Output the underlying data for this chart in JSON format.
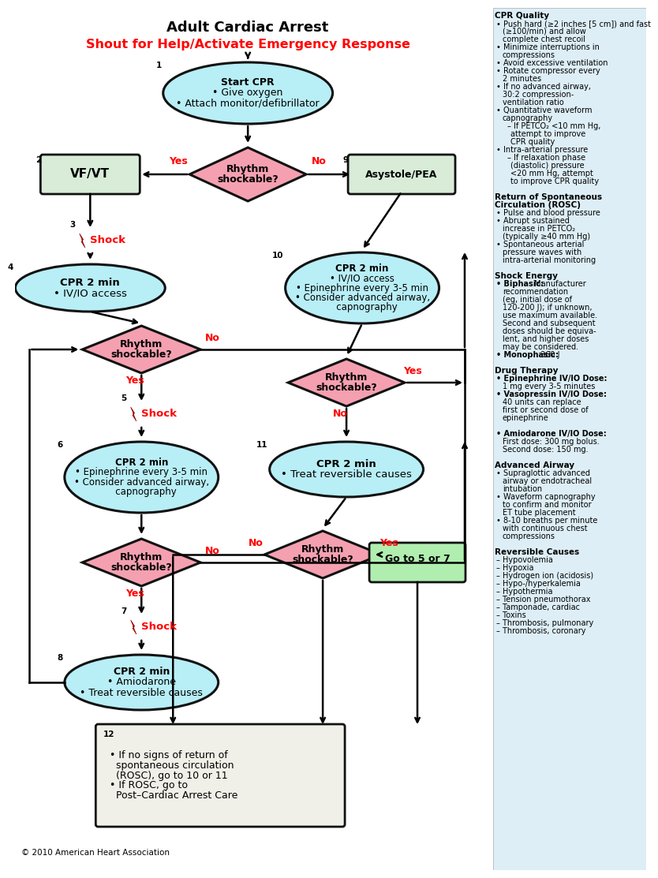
{
  "title": "Adult Cardiac Arrest",
  "subtitle": "Shout for Help/Activate Emergency Response",
  "bg": "#ffffff",
  "sidebar_bg": "#ddeef6",
  "ellipse_color": "#b8eef6",
  "diamond_color": "#f4a0b0",
  "rect_green": "#d8ecd8",
  "goto_color": "#b0eeb0",
  "box12_color": "#f0f0e8",
  "copyright": "© 2010 American Heart Association",
  "sidebar_lines": [
    {
      "t": "CPR Quality",
      "b": true,
      "i": 0
    },
    {
      "t": "• Push hard (≥2 inches [5 cm]) and fast",
      "b": false,
      "i": 1
    },
    {
      "t": "(≥100/min) and allow",
      "b": false,
      "i": 2
    },
    {
      "t": "complete chest recoil",
      "b": false,
      "i": 2
    },
    {
      "t": "• Minimize interruptions in",
      "b": false,
      "i": 1
    },
    {
      "t": "compressions",
      "b": false,
      "i": 2
    },
    {
      "t": "• Avoid excessive ventilation",
      "b": false,
      "i": 1
    },
    {
      "t": "• Rotate compressor every",
      "b": false,
      "i": 1
    },
    {
      "t": "2 minutes",
      "b": false,
      "i": 2
    },
    {
      "t": "• If no advanced airway,",
      "b": false,
      "i": 1
    },
    {
      "t": "30:2 compression-",
      "b": false,
      "i": 2
    },
    {
      "t": "ventilation ratio",
      "b": false,
      "i": 2
    },
    {
      "t": "• Quantitative waveform",
      "b": false,
      "i": 1
    },
    {
      "t": "capnography",
      "b": false,
      "i": 2
    },
    {
      "t": "– If PETCO₂ <10 mm Hg,",
      "b": false,
      "i": 3
    },
    {
      "t": "attempt to improve",
      "b": false,
      "i": 4
    },
    {
      "t": "CPR quality",
      "b": false,
      "i": 4
    },
    {
      "t": "• Intra-arterial pressure",
      "b": false,
      "i": 1
    },
    {
      "t": "– If relaxation phase",
      "b": false,
      "i": 3
    },
    {
      "t": "(diastolic) pressure",
      "b": false,
      "i": 4
    },
    {
      "t": "<20 mm Hg, attempt",
      "b": false,
      "i": 4
    },
    {
      "t": "to improve CPR quality",
      "b": false,
      "i": 4
    },
    {
      "t": " ",
      "b": false,
      "i": 0
    },
    {
      "t": "Return of Spontaneous",
      "b": true,
      "i": 0
    },
    {
      "t": "Circulation (ROSC)",
      "b": true,
      "i": 0
    },
    {
      "t": "• Pulse and blood pressure",
      "b": false,
      "i": 1
    },
    {
      "t": "• Abrupt sustained",
      "b": false,
      "i": 1
    },
    {
      "t": "increase in PETCO₂",
      "b": false,
      "i": 2
    },
    {
      "t": "(typically ≥40 mm Hg)",
      "b": false,
      "i": 2
    },
    {
      "t": "• Spontaneous arterial",
      "b": false,
      "i": 1
    },
    {
      "t": "pressure waves with",
      "b": false,
      "i": 2
    },
    {
      "t": "intra-arterial monitoring",
      "b": false,
      "i": 2
    },
    {
      "t": " ",
      "b": false,
      "i": 0
    },
    {
      "t": "Shock Energy",
      "b": true,
      "i": 0
    },
    {
      "t": "• Biphasic: Manufacturer",
      "b": false,
      "i": 1,
      "bold_prefix": "Biphasic:"
    },
    {
      "t": "recommendation",
      "b": false,
      "i": 2
    },
    {
      "t": "(eg, initial dose of",
      "b": false,
      "i": 2
    },
    {
      "t": "120-200 J); if unknown,",
      "b": false,
      "i": 2
    },
    {
      "t": "use maximum available.",
      "b": false,
      "i": 2
    },
    {
      "t": "Second and subsequent",
      "b": false,
      "i": 2
    },
    {
      "t": "doses should be equiva-",
      "b": false,
      "i": 2
    },
    {
      "t": "lent, and higher doses",
      "b": false,
      "i": 2
    },
    {
      "t": "may be considered.",
      "b": false,
      "i": 2
    },
    {
      "t": "• Monophasic: 360 J",
      "b": false,
      "i": 1,
      "bold_prefix": "Monophasic:"
    },
    {
      "t": " ",
      "b": false,
      "i": 0
    },
    {
      "t": "Drug Therapy",
      "b": true,
      "i": 0
    },
    {
      "t": "• Epinephrine IV/IO Dose:",
      "b": false,
      "i": 1,
      "bold_prefix": "Epinephrine IV/IO Dose:"
    },
    {
      "t": "1 mg every 3-5 minutes",
      "b": false,
      "i": 2
    },
    {
      "t": "• Vasopressin IV/IO Dose:",
      "b": false,
      "i": 1,
      "bold_prefix": "Vasopressin IV/IO Dose:"
    },
    {
      "t": "40 units can replace",
      "b": false,
      "i": 2
    },
    {
      "t": "first or second dose of",
      "b": false,
      "i": 2
    },
    {
      "t": "epinephrine",
      "b": false,
      "i": 2
    },
    {
      "t": " ",
      "b": false,
      "i": 0
    },
    {
      "t": "• Amiodarone IV/IO Dose:",
      "b": false,
      "i": 1,
      "bold_prefix": "Amiodarone IV/IO Dose:"
    },
    {
      "t": "First dose: 300 mg bolus.",
      "b": false,
      "i": 2
    },
    {
      "t": "Second dose: 150 mg.",
      "b": false,
      "i": 2
    },
    {
      "t": " ",
      "b": false,
      "i": 0
    },
    {
      "t": "Advanced Airway",
      "b": true,
      "i": 0
    },
    {
      "t": "• Supraglottic advanced",
      "b": false,
      "i": 1
    },
    {
      "t": "airway or endotracheal",
      "b": false,
      "i": 2
    },
    {
      "t": "intubation",
      "b": false,
      "i": 2
    },
    {
      "t": "• Waveform capnography",
      "b": false,
      "i": 1
    },
    {
      "t": "to confirm and monitor",
      "b": false,
      "i": 2
    },
    {
      "t": "ET tube placement",
      "b": false,
      "i": 2
    },
    {
      "t": "• 8-10 breaths per minute",
      "b": false,
      "i": 1
    },
    {
      "t": "with continuous chest",
      "b": false,
      "i": 2
    },
    {
      "t": "compressions",
      "b": false,
      "i": 2
    },
    {
      "t": " ",
      "b": false,
      "i": 0
    },
    {
      "t": "Reversible Causes",
      "b": true,
      "i": 0
    },
    {
      "t": "– Hypovolemia",
      "b": false,
      "i": 1
    },
    {
      "t": "– Hypoxia",
      "b": false,
      "i": 1
    },
    {
      "t": "– Hydrogen ion (acidosis)",
      "b": false,
      "i": 1
    },
    {
      "t": "– Hypo-/hyperkalemia",
      "b": false,
      "i": 1
    },
    {
      "t": "– Hypothermia",
      "b": false,
      "i": 1
    },
    {
      "t": "– Tension pneumothorax",
      "b": false,
      "i": 1
    },
    {
      "t": "– Tamponade, cardiac",
      "b": false,
      "i": 1
    },
    {
      "t": "– Toxins",
      "b": false,
      "i": 1
    },
    {
      "t": "– Thrombosis, pulmonary",
      "b": false,
      "i": 1
    },
    {
      "t": "– Thrombosis, coronary",
      "b": false,
      "i": 1
    }
  ]
}
